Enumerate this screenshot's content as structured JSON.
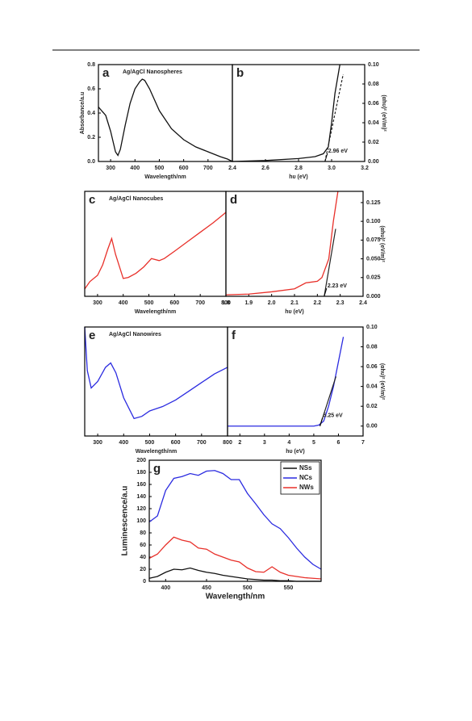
{
  "chart_data": [
    {
      "type": "line",
      "panel": "a",
      "title": "Ag/AgCl Nanospheres",
      "x_label": "Wavelength/nm",
      "y_label": "Absorbance/a.u",
      "y_axis_side": "left",
      "x": [
        250,
        280,
        300,
        320,
        330,
        340,
        360,
        380,
        400,
        420,
        430,
        440,
        460,
        500,
        550,
        600,
        650,
        700,
        750,
        780,
        800
      ],
      "series": [
        {
          "color": "#111111",
          "values": [
            0.45,
            0.38,
            0.25,
            0.08,
            0.05,
            0.1,
            0.3,
            0.48,
            0.6,
            0.66,
            0.68,
            0.67,
            0.6,
            0.42,
            0.27,
            0.18,
            0.12,
            0.08,
            0.04,
            0.02,
            0.0
          ]
        }
      ],
      "xlim": [
        250,
        800
      ],
      "xticks": [
        300,
        400,
        500,
        600,
        700
      ],
      "ylim": [
        0,
        0.8
      ],
      "yticks": [
        {
          "value": 0,
          "label": "0.0"
        },
        0.2,
        0.4,
        0.6,
        0.8
      ]
    },
    {
      "type": "line",
      "panel": "b",
      "x_label": "hυ (eV)",
      "y_label": "(αhυ)² (eV/m)²",
      "y_axis_side": "right",
      "x": [
        2.4,
        2.6,
        2.8,
        2.9,
        2.95,
        2.98,
        3.0,
        3.02,
        3.05
      ],
      "series": [
        {
          "color": "#111111",
          "values": [
            0,
            0.001,
            0.003,
            0.005,
            0.008,
            0.015,
            0.04,
            0.07,
            0.1
          ]
        }
      ],
      "fit": {
        "x": [
          2.96,
          3.07
        ],
        "y": [
          0,
          0.09
        ]
      },
      "annotation": {
        "label": "2.96 eV",
        "value": 2.96
      },
      "xlim": [
        2.4,
        3.2
      ],
      "xticks": [
        2.4,
        2.6,
        2.8,
        {
          "value": 3,
          "label": "3.0"
        },
        3.2
      ],
      "ylim": [
        0,
        0.1
      ],
      "yticks": [
        {
          "value": 0,
          "label": "0.00"
        },
        0.02,
        0.04,
        0.06,
        0.08,
        {
          "value": 0.1,
          "label": "0.10"
        }
      ]
    },
    {
      "type": "line",
      "panel": "c",
      "title": "Ag/AgCl Nanocubes",
      "x_label": "Wavelength/nm",
      "y_axis_side": "none",
      "x": [
        250,
        270,
        300,
        320,
        340,
        355,
        370,
        400,
        420,
        450,
        480,
        510,
        540,
        560,
        600,
        650,
        700,
        750,
        780,
        800
      ],
      "series": [
        {
          "color": "#e8302a",
          "values": [
            0.07,
            0.14,
            0.2,
            0.3,
            0.45,
            0.55,
            0.4,
            0.17,
            0.18,
            0.22,
            0.28,
            0.36,
            0.34,
            0.36,
            0.43,
            0.52,
            0.61,
            0.7,
            0.76,
            0.8
          ]
        }
      ],
      "xlim": [
        250,
        800
      ],
      "xticks": [
        300,
        400,
        500,
        600,
        700,
        800
      ],
      "ylim": [
        0,
        1
      ]
    },
    {
      "type": "line",
      "panel": "d",
      "x_label": "hυ (eV)",
      "y_label": "(αhυ)² (eV/m)²",
      "y_axis_side": "right",
      "x": [
        1.8,
        1.9,
        2.0,
        2.1,
        2.15,
        2.2,
        2.22,
        2.25,
        2.27,
        2.29
      ],
      "series": [
        {
          "color": "#e8302a",
          "values": [
            0.002,
            0.003,
            0.006,
            0.01,
            0.018,
            0.02,
            0.025,
            0.05,
            0.1,
            0.14
          ]
        }
      ],
      "fit": {
        "x": [
          2.23,
          2.28
        ],
        "y": [
          0,
          0.09
        ]
      },
      "annotation": {
        "label": "2.23 eV",
        "value": 2.23
      },
      "xlim": [
        1.8,
        2.4
      ],
      "xticks": [
        1.8,
        1.9,
        {
          "value": 2,
          "label": "2.0"
        },
        2.1,
        2.2,
        2.3,
        2.4
      ],
      "ylim": [
        0,
        0.14
      ],
      "yticks": [
        {
          "value": 0,
          "label": "0.000"
        },
        0.025,
        {
          "value": 0.05,
          "label": "0.050"
        },
        0.075,
        {
          "value": 0.1,
          "label": "0.100"
        },
        0.125
      ]
    },
    {
      "type": "line",
      "panel": "e",
      "title": "Ag/AgCl Nanowires",
      "x_label": "Wavelength/nm",
      "y_axis_side": "none",
      "x": [
        250,
        260,
        275,
        300,
        330,
        350,
        370,
        400,
        440,
        470,
        500,
        550,
        600,
        650,
        700,
        750,
        800
      ],
      "series": [
        {
          "color": "#2b2be0",
          "values": [
            1.0,
            0.6,
            0.44,
            0.5,
            0.63,
            0.67,
            0.58,
            0.35,
            0.16,
            0.18,
            0.23,
            0.27,
            0.33,
            0.41,
            0.49,
            0.57,
            0.63
          ]
        }
      ],
      "xlim": [
        250,
        800
      ],
      "xticks": [
        300,
        400,
        500,
        600,
        700,
        800
      ],
      "ylim": [
        0,
        1
      ]
    },
    {
      "type": "line",
      "panel": "f",
      "x_label": "hυ (eV)",
      "y_label": "(αhυ)² (eV/m)²",
      "y_axis_side": "right",
      "x": [
        1.5,
        2,
        3,
        4,
        5,
        5.2,
        5.4,
        5.6,
        5.8,
        6,
        6.2
      ],
      "series": [
        {
          "color": "#2b2be0",
          "values": [
            0,
            0,
            0,
            0,
            0,
            0.001,
            0.005,
            0.02,
            0.04,
            0.065,
            0.09
          ]
        }
      ],
      "fit": {
        "x": [
          5.25,
          5.9
        ],
        "y": [
          0,
          0.05
        ]
      },
      "annotation": {
        "label": "5.25 eV",
        "value": 5.25
      },
      "xlim": [
        1.5,
        7
      ],
      "xticks": [
        2,
        3,
        4,
        5,
        6,
        7
      ],
      "ylim": [
        -0.01,
        0.1
      ],
      "yticks": [
        {
          "value": 0,
          "label": "0.00"
        },
        0.02,
        0.04,
        0.06,
        0.08,
        {
          "value": 0.1,
          "label": "0.10"
        }
      ]
    },
    {
      "type": "line",
      "panel": "g",
      "x_label": "Wavelength/nm",
      "y_label": "Luminescence/a.u",
      "y_axis_side": "left",
      "legend": "upper right",
      "x": [
        380,
        390,
        400,
        410,
        420,
        430,
        440,
        450,
        460,
        470,
        480,
        490,
        500,
        510,
        520,
        530,
        540,
        550,
        560,
        570,
        580,
        590
      ],
      "series": [
        {
          "name": "NSs",
          "color": "#111111",
          "values": [
            5,
            8,
            15,
            20,
            19,
            22,
            18,
            15,
            13,
            10,
            8,
            6,
            4,
            3,
            2,
            2,
            1,
            1,
            0,
            0,
            0,
            0
          ]
        },
        {
          "name": "NCs",
          "color": "#2b2be0",
          "values": [
            98,
            108,
            150,
            170,
            173,
            178,
            175,
            182,
            183,
            178,
            168,
            168,
            145,
            128,
            110,
            95,
            87,
            72,
            55,
            40,
            28,
            20
          ]
        },
        {
          "name": "NWs",
          "color": "#e8302a",
          "values": [
            38,
            45,
            60,
            73,
            68,
            65,
            55,
            53,
            45,
            40,
            35,
            32,
            22,
            16,
            15,
            24,
            15,
            10,
            8,
            6,
            5,
            4
          ]
        }
      ],
      "xlim": [
        380,
        590
      ],
      "xticks": [
        400,
        450,
        500,
        550
      ],
      "ylim": [
        0,
        200
      ],
      "yticks": [
        0,
        20,
        40,
        60,
        80,
        100,
        120,
        140,
        160,
        180,
        200
      ]
    }
  ]
}
